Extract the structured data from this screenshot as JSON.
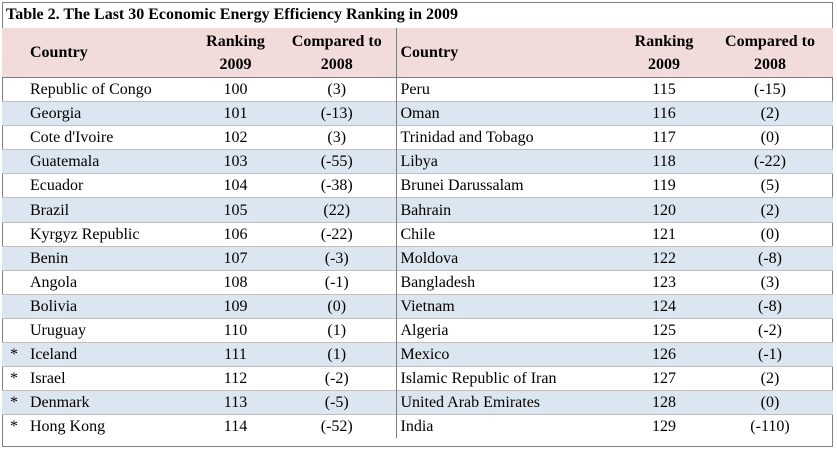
{
  "title": "Table 2. The Last 30 Economic Energy Efficiency Ranking in 2009",
  "headers": {
    "country": "Country",
    "ranking_line1": "Ranking",
    "ranking_line2": "2009",
    "compared_line1": "Compared to",
    "compared_line2": "2008"
  },
  "rows": [
    {
      "left": {
        "mark": "",
        "country": "Republic of Congo",
        "rank": "100",
        "change": "(3)"
      },
      "right": {
        "country": "Peru",
        "rank": "115",
        "change": "(-15)"
      }
    },
    {
      "left": {
        "mark": "",
        "country": "Georgia",
        "rank": "101",
        "change": "(-13)"
      },
      "right": {
        "country": "Oman",
        "rank": "116",
        "change": "(2)"
      }
    },
    {
      "left": {
        "mark": "",
        "country": "Cote d'Ivoire",
        "rank": "102",
        "change": "(3)"
      },
      "right": {
        "country": "Trinidad and Tobago",
        "rank": "117",
        "change": "(0)"
      }
    },
    {
      "left": {
        "mark": "",
        "country": "Guatemala",
        "rank": "103",
        "change": "(-55)"
      },
      "right": {
        "country": "Libya",
        "rank": "118",
        "change": "(-22)"
      }
    },
    {
      "left": {
        "mark": "",
        "country": "Ecuador",
        "rank": "104",
        "change": "(-38)"
      },
      "right": {
        "country": "Brunei Darussalam",
        "rank": "119",
        "change": "(5)"
      }
    },
    {
      "left": {
        "mark": "",
        "country": "Brazil",
        "rank": "105",
        "change": "(22)"
      },
      "right": {
        "country": "Bahrain",
        "rank": "120",
        "change": "(2)"
      }
    },
    {
      "left": {
        "mark": "",
        "country": "Kyrgyz Republic",
        "rank": "106",
        "change": "(-22)"
      },
      "right": {
        "country": "Chile",
        "rank": "121",
        "change": "(0)"
      }
    },
    {
      "left": {
        "mark": "",
        "country": "Benin",
        "rank": "107",
        "change": "(-3)"
      },
      "right": {
        "country": "Moldova",
        "rank": "122",
        "change": "(-8)"
      }
    },
    {
      "left": {
        "mark": "",
        "country": "Angola",
        "rank": "108",
        "change": "(-1)"
      },
      "right": {
        "country": "Bangladesh",
        "rank": "123",
        "change": "(3)"
      }
    },
    {
      "left": {
        "mark": "",
        "country": "Bolivia",
        "rank": "109",
        "change": "(0)"
      },
      "right": {
        "country": "Vietnam",
        "rank": "124",
        "change": "(-8)"
      }
    },
    {
      "left": {
        "mark": "",
        "country": "Uruguay",
        "rank": "110",
        "change": "(1)"
      },
      "right": {
        "country": "Algeria",
        "rank": "125",
        "change": "(-2)"
      }
    },
    {
      "left": {
        "mark": "*",
        "country": "Iceland",
        "rank": "111",
        "change": "(1)"
      },
      "right": {
        "country": "Mexico",
        "rank": "126",
        "change": "(-1)"
      }
    },
    {
      "left": {
        "mark": "*",
        "country": "Israel",
        "rank": "112",
        "change": "(-2)"
      },
      "right": {
        "country": "Islamic Republic of Iran",
        "rank": "127",
        "change": "(2)"
      }
    },
    {
      "left": {
        "mark": "*",
        "country": "Denmark",
        "rank": "113",
        "change": "(-5)"
      },
      "right": {
        "country": "United Arab Emirates",
        "rank": "128",
        "change": "(0)"
      }
    },
    {
      "left": {
        "mark": "*",
        "country": "Hong Kong",
        "rank": "114",
        "change": "(-52)"
      },
      "right": {
        "country": "India",
        "rank": "129",
        "change": "(-110)"
      }
    }
  ],
  "colors": {
    "header_bg": "#f2dcdb",
    "alt_row_bg": "#dce6f1",
    "border": "#7f7f7f"
  }
}
